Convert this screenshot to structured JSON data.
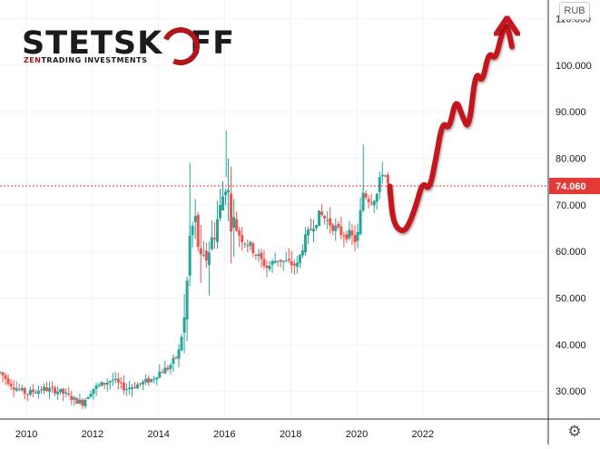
{
  "logo": {
    "title_left": "STETSK",
    "title_right": "FF",
    "subtitle_zen": "ZEN",
    "subtitle_rest": "TRADING INVESTMENTS"
  },
  "currency": "RUB",
  "icons": {
    "settings": "gear-icon",
    "logo_ring": "ring-arrow-icon",
    "forecast_arrow": "arrow-up-icon"
  },
  "colors": {
    "up": "#26a69a",
    "down": "#ef5350",
    "grid": "#f0f3fa",
    "axis_text": "#131722",
    "price_line": "#e53935",
    "forecast": "#c4161c"
  },
  "chart_data": {
    "type": "candlestick",
    "x_ticks": [
      "2010",
      "2012",
      "2014",
      "2016",
      "2018",
      "2020",
      "2022"
    ],
    "y_ticks": [
      "30.000",
      "40.000",
      "50.000",
      "60.000",
      "70.000",
      "80.000",
      "90.000",
      "100.000",
      "110.000"
    ],
    "ylim": [
      24,
      114
    ],
    "xlim": [
      2009.2,
      2025.8
    ],
    "last_price": 74.06,
    "last_price_label": "74.060",
    "price_path": [
      [
        2009.2,
        34
      ],
      [
        2009.6,
        31
      ],
      [
        2010.0,
        29.5
      ],
      [
        2010.5,
        30.5
      ],
      [
        2011.0,
        30
      ],
      [
        2011.5,
        28
      ],
      [
        2011.7,
        27.5
      ],
      [
        2012.0,
        30.5
      ],
      [
        2012.3,
        31.5
      ],
      [
        2012.6,
        32.5
      ],
      [
        2013.0,
        30.5
      ],
      [
        2013.4,
        31.5
      ],
      [
        2013.8,
        32.5
      ],
      [
        2014.0,
        34
      ],
      [
        2014.3,
        35
      ],
      [
        2014.6,
        38
      ],
      [
        2014.8,
        46
      ],
      [
        2014.95,
        63
      ],
      [
        2015.1,
        67
      ],
      [
        2015.3,
        56
      ],
      [
        2015.6,
        62
      ],
      [
        2015.9,
        70
      ],
      [
        2016.05,
        76
      ],
      [
        2016.2,
        67
      ],
      [
        2016.5,
        63
      ],
      [
        2016.8,
        61
      ],
      [
        2017.0,
        59
      ],
      [
        2017.3,
        56.5
      ],
      [
        2017.6,
        58.5
      ],
      [
        2017.9,
        57.5
      ],
      [
        2018.2,
        57
      ],
      [
        2018.4,
        62
      ],
      [
        2018.7,
        66
      ],
      [
        2018.9,
        68
      ],
      [
        2019.2,
        66
      ],
      [
        2019.5,
        64
      ],
      [
        2019.8,
        63.5
      ],
      [
        2020.0,
        62
      ],
      [
        2020.2,
        73
      ],
      [
        2020.4,
        71
      ],
      [
        2020.6,
        72
      ],
      [
        2020.8,
        78
      ],
      [
        2020.95,
        74.06
      ]
    ],
    "forecast_path": [
      [
        2021.0,
        74
      ],
      [
        2021.1,
        66
      ],
      [
        2021.4,
        64
      ],
      [
        2021.6,
        66
      ],
      [
        2021.8,
        70
      ],
      [
        2022.0,
        75
      ],
      [
        2022.2,
        73
      ],
      [
        2022.4,
        80
      ],
      [
        2022.6,
        88
      ],
      [
        2022.8,
        86
      ],
      [
        2023.0,
        93
      ],
      [
        2023.2,
        89
      ],
      [
        2023.4,
        86
      ],
      [
        2023.6,
        99
      ],
      [
        2023.8,
        96
      ],
      [
        2024.0,
        103
      ],
      [
        2024.2,
        101
      ],
      [
        2024.4,
        107
      ],
      [
        2024.55,
        109
      ],
      [
        2024.7,
        104
      ]
    ]
  }
}
